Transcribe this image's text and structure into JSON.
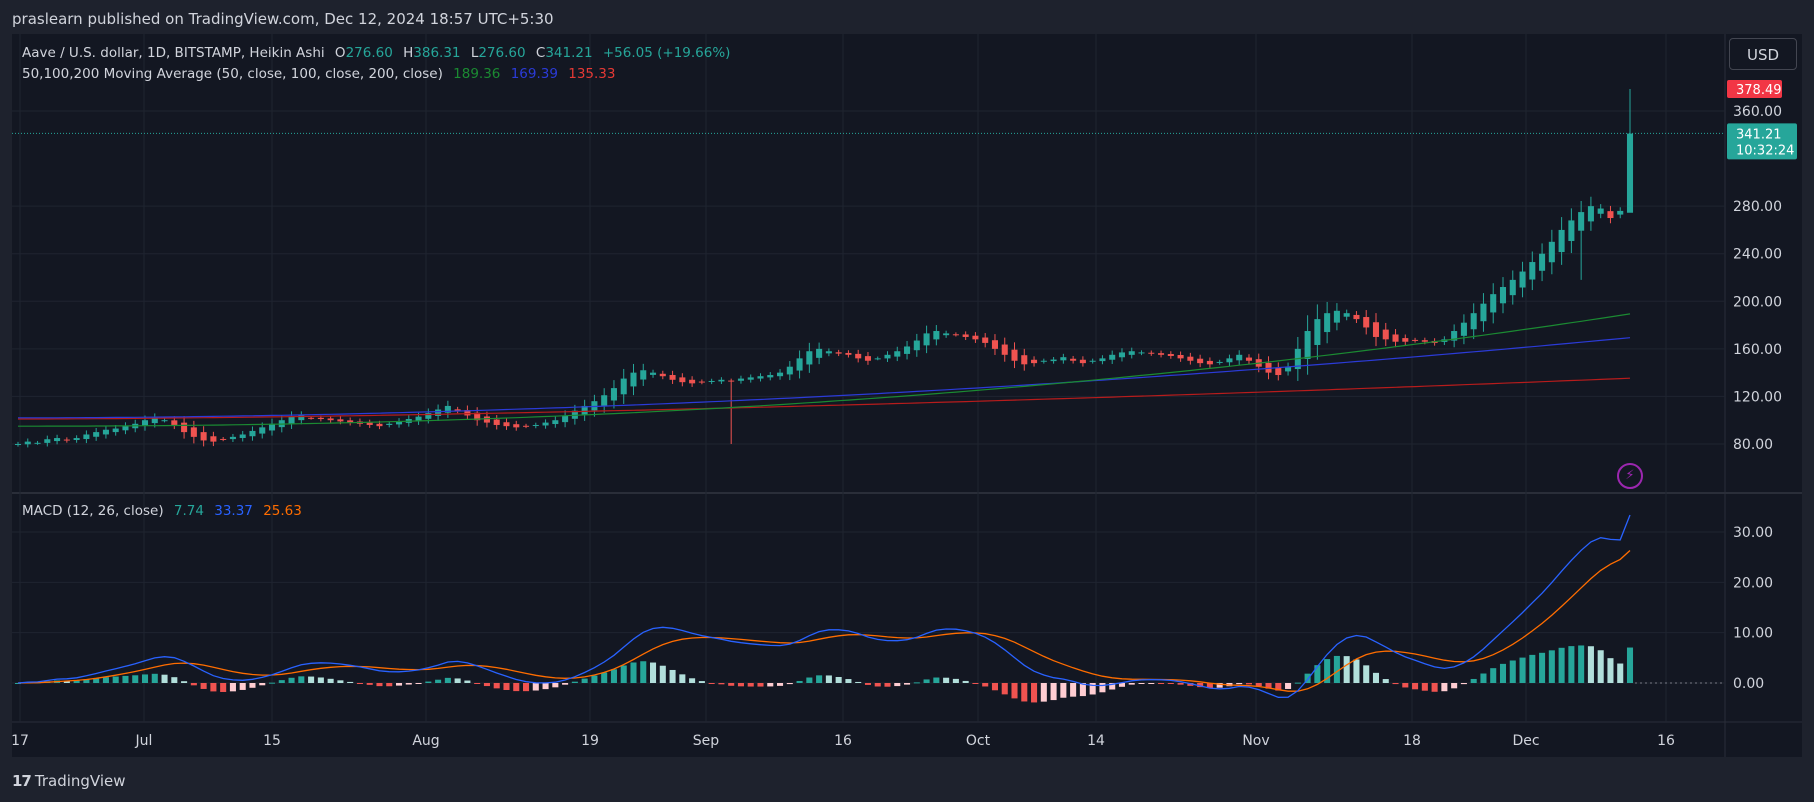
{
  "header": {
    "publish_text": "praslearn published on TradingView.com, Dec 12, 2024 18:57 UTC+5:30"
  },
  "legend": {
    "symbol": "Aave / U.S. dollar, 1D, BITSTAMP, Heikin Ashi",
    "o_label": "O",
    "o_value": "276.60",
    "h_label": "H",
    "h_value": "386.31",
    "l_label": "L",
    "l_value": "276.60",
    "c_label": "C",
    "c_value": "341.21",
    "change": "+56.05 (+19.66%)",
    "ma_label": "50,100,200 Moving Average (50, close, 100, close, 200, close)",
    "ma50": "189.36",
    "ma100": "169.39",
    "ma200": "135.33",
    "macd_label": "MACD (12, 26, close)",
    "macd_hist": "7.74",
    "macd_line": "33.37",
    "macd_signal": "25.63"
  },
  "currency_button": "USD",
  "price_tags": {
    "high_tag": "378.49",
    "last_price": "341.21",
    "countdown": "10:32:24"
  },
  "branding": {
    "logo_mark": "17",
    "name": "TradingView"
  },
  "colors": {
    "background": "#131722",
    "up": "#26a69a",
    "down": "#ef5350",
    "ma50": "#1b8a32",
    "ma100": "#2b3bd8",
    "ma200": "#b71c1c",
    "macd": "#2962ff",
    "signal": "#ff6d00",
    "hist_up": "#26a69a",
    "hist_up_light": "#b2dfdb",
    "hist_down": "#ef5350",
    "hist_down_light": "#ffcdd2"
  },
  "chart_data": [
    {
      "type": "candlestick",
      "title": "Aave / U.S. dollar, 1D, BITSTAMP, Heikin Ashi",
      "x_ticks": [
        "17",
        "Jul",
        "15",
        "Aug",
        "19",
        "Sep",
        "16",
        "Oct",
        "14",
        "Nov",
        "18",
        "Dec",
        "16"
      ],
      "y_ticks": [
        "80.00",
        "120.00",
        "160.00",
        "200.00",
        "240.00",
        "280.00",
        "360.00"
      ],
      "y_range": [
        44,
        400
      ],
      "grid": true,
      "candles_note": "daily Heikin Ashi candles, approx. Jun 17 – Dec 12, 2024",
      "closes": [
        80,
        82,
        81,
        84,
        85,
        83,
        85,
        88,
        90,
        92,
        93,
        95,
        97,
        100,
        102,
        100,
        96,
        90,
        86,
        83,
        82,
        84,
        86,
        88,
        91,
        94,
        97,
        100,
        103,
        104,
        102,
        101,
        100,
        99,
        98,
        97,
        96,
        95,
        97,
        99,
        101,
        103,
        106,
        109,
        112,
        108,
        104,
        100,
        98,
        96,
        95,
        94,
        95,
        96,
        98,
        100,
        104,
        108,
        112,
        116,
        121,
        127,
        135,
        140,
        142,
        140,
        137,
        134,
        132,
        131,
        132,
        133,
        134,
        133,
        135,
        136,
        137,
        138,
        140,
        145,
        152,
        158,
        160,
        158,
        156,
        155,
        152,
        150,
        152,
        155,
        158,
        162,
        167,
        173,
        175,
        173,
        172,
        170,
        168,
        165,
        160,
        155,
        150,
        147,
        148,
        150,
        151,
        153,
        150,
        148,
        150,
        152,
        155,
        157,
        158,
        157,
        156,
        155,
        154,
        152,
        150,
        148,
        147,
        149,
        152,
        155,
        150,
        145,
        140,
        138,
        145,
        160,
        175,
        185,
        190,
        192,
        190,
        185,
        178,
        170,
        168,
        166,
        166,
        167,
        166,
        165,
        168,
        175,
        182,
        190,
        198,
        206,
        212,
        218,
        225,
        233,
        240,
        250,
        260,
        268,
        275,
        280,
        278,
        270,
        276,
        341
      ],
      "ma50": {
        "start": 95,
        "end": 189.36
      },
      "ma100": {
        "start": 102,
        "end": 169.39
      },
      "ma200": {
        "start": 101,
        "end": 135.33
      },
      "last_close": 341.21,
      "high_mark": 378.49
    },
    {
      "type": "bar+line",
      "title": "MACD (12, 26, close)",
      "y_ticks": [
        "30.00",
        "20.00",
        "10.00",
        "0.00"
      ],
      "y_range": [
        -8,
        36
      ],
      "series": [
        {
          "name": "Histogram",
          "last": 7.74
        },
        {
          "name": "MACD",
          "last": 33.37
        },
        {
          "name": "Signal",
          "last": 25.63
        }
      ]
    }
  ]
}
